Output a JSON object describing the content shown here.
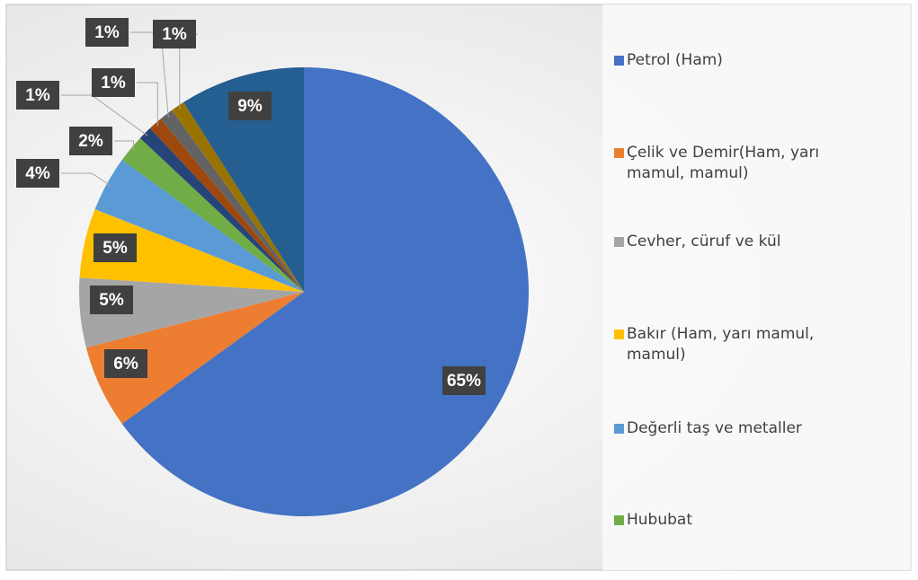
{
  "chart_data": {
    "type": "pie",
    "categories": [
      "Petrol (Ham)",
      "Çelik ve Demir(Ham, yarı mamul, mamul)",
      "Cevher, cüruf ve kül",
      "Bakır (Ham, yarı mamul, mamul)",
      "Değerli taş ve metaller",
      "Hububat",
      null,
      null,
      null,
      null,
      null
    ],
    "values": [
      65,
      6,
      5,
      5,
      4,
      2,
      1,
      1,
      1,
      1,
      9
    ],
    "value_labels": [
      "65%",
      "6%",
      "5%",
      "5%",
      "4%",
      "2%",
      "1%",
      "1%",
      "1%",
      "1%",
      "9%"
    ],
    "colors": [
      "#4472c4",
      "#ed7d31",
      "#a5a5a5",
      "#ffc000",
      "#5b9bd5",
      "#70ad47",
      "#264478",
      "#9e480e",
      "#636363",
      "#997300",
      "#255e91"
    ],
    "legend": "right"
  }
}
